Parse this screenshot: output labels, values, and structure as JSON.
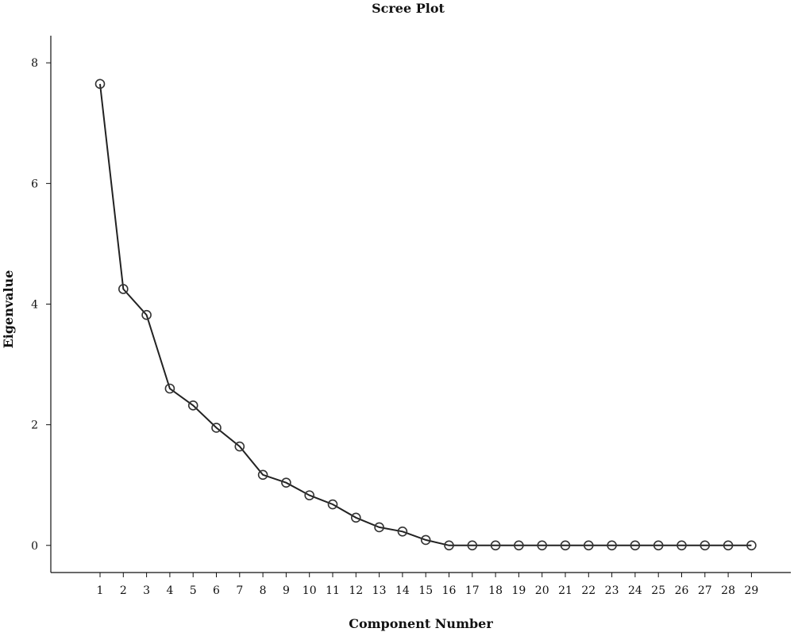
{
  "chart_data": {
    "type": "line",
    "title": "Scree Plot",
    "xlabel": "Component Number",
    "ylabel": "Eigenvalue",
    "x": [
      1,
      2,
      3,
      4,
      5,
      6,
      7,
      8,
      9,
      10,
      11,
      12,
      13,
      14,
      15,
      16,
      17,
      18,
      19,
      20,
      21,
      22,
      23,
      24,
      25,
      26,
      27,
      28,
      29
    ],
    "y_ticks": [
      0,
      2,
      4,
      6,
      8
    ],
    "ylim": [
      -0.45,
      8.45
    ],
    "grid": false,
    "marker": "open-circle",
    "series": [
      {
        "values": [
          7.65,
          4.25,
          3.82,
          2.6,
          2.32,
          1.95,
          1.64,
          1.17,
          1.04,
          0.83,
          0.68,
          0.46,
          0.3,
          0.23,
          0.09,
          0,
          0,
          0,
          0,
          0,
          0,
          0,
          0,
          0,
          0,
          0,
          0,
          0,
          0
        ],
        "color": "#222222"
      }
    ]
  }
}
